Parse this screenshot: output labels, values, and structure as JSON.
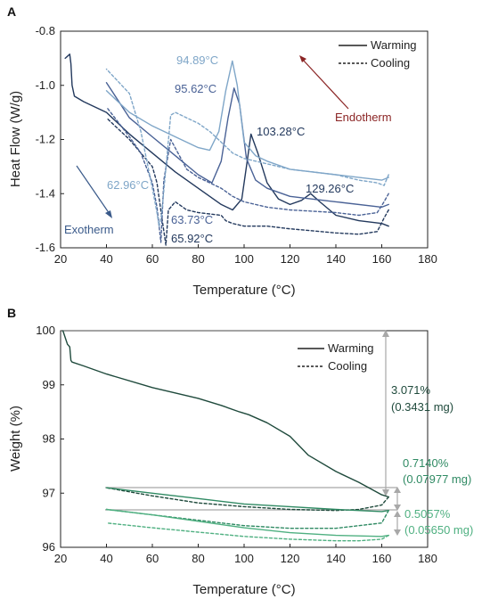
{
  "chart_data": [
    {
      "panel": "A",
      "type": "line",
      "xlabel": "Temperature (°C)",
      "ylabel": "Heat Flow (W/g)",
      "xlim": [
        20,
        180
      ],
      "ylim": [
        -1.6,
        -0.8
      ],
      "xticks": [
        20,
        40,
        60,
        80,
        100,
        120,
        140,
        160,
        180
      ],
      "yticks": [
        -0.8,
        -1.0,
        -1.2,
        -1.4,
        -1.6
      ],
      "ytick_labels": [
        "-0.8",
        "-1.0",
        "-1.2",
        "-1.4",
        "-1.6"
      ],
      "legend": {
        "position": "top-right",
        "entries": [
          "Warming",
          "Cooling"
        ]
      },
      "colors": {
        "dark": "#23395d",
        "mid": "#4a6296",
        "light": "#7fa6c8",
        "endotherm": "#8b2525",
        "exotherm": "#3a5a8a"
      },
      "series": [
        {
          "style": "solid",
          "color": "#23395d",
          "x": [
            22,
            24,
            24.5,
            25,
            26,
            30,
            40,
            50,
            60,
            70,
            80,
            90,
            95,
            99,
            101,
            103,
            106,
            110,
            115,
            120,
            125,
            129,
            133,
            140,
            150,
            160,
            163
          ],
          "y": [
            -0.9,
            -0.885,
            -0.92,
            -1.0,
            -1.04,
            -1.06,
            -1.1,
            -1.18,
            -1.25,
            -1.32,
            -1.38,
            -1.44,
            -1.46,
            -1.42,
            -1.3,
            -1.18,
            -1.25,
            -1.36,
            -1.42,
            -1.44,
            -1.425,
            -1.4,
            -1.43,
            -1.48,
            -1.5,
            -1.51,
            -1.52
          ]
        },
        {
          "style": "solid",
          "color": "#4a6296",
          "x": [
            40,
            50,
            60,
            70,
            80,
            86,
            90,
            93,
            95.62,
            98,
            101,
            105,
            110,
            120,
            140,
            160,
            163
          ],
          "y": [
            -0.99,
            -1.12,
            -1.19,
            -1.26,
            -1.33,
            -1.36,
            -1.28,
            -1.12,
            -1.01,
            -1.07,
            -1.27,
            -1.35,
            -1.38,
            -1.41,
            -1.43,
            -1.45,
            -1.44
          ]
        },
        {
          "style": "solid",
          "color": "#7fa6c8",
          "x": [
            40,
            50,
            60,
            70,
            80,
            85,
            89,
            92,
            94.89,
            97,
            100,
            105,
            110,
            120,
            140,
            160,
            163
          ],
          "y": [
            -1.02,
            -1.1,
            -1.15,
            -1.19,
            -1.23,
            -1.24,
            -1.17,
            -1.02,
            -0.91,
            -1.0,
            -1.21,
            -1.26,
            -1.28,
            -1.31,
            -1.33,
            -1.35,
            -1.34
          ]
        },
        {
          "style": "dashed",
          "color": "#23395d",
          "x": [
            163,
            161,
            158,
            150,
            140,
            120,
            110,
            100,
            95,
            92,
            90,
            80,
            75,
            70,
            67,
            65.92,
            64,
            62,
            60,
            55,
            50,
            40
          ],
          "y": [
            -1.46,
            -1.49,
            -1.54,
            -1.55,
            -1.545,
            -1.53,
            -1.52,
            -1.52,
            -1.51,
            -1.5,
            -1.48,
            -1.47,
            -1.46,
            -1.43,
            -1.46,
            -1.59,
            -1.48,
            -1.36,
            -1.3,
            -1.25,
            -1.2,
            -1.12
          ]
        },
        {
          "style": "dashed",
          "color": "#4a6296",
          "x": [
            163,
            161,
            158,
            150,
            140,
            120,
            110,
            100,
            95,
            90,
            85,
            80,
            75,
            68,
            65,
            63.73,
            62,
            60,
            55,
            50,
            40
          ],
          "y": [
            -1.4,
            -1.43,
            -1.47,
            -1.48,
            -1.47,
            -1.46,
            -1.45,
            -1.43,
            -1.41,
            -1.38,
            -1.36,
            -1.34,
            -1.31,
            -1.2,
            -1.35,
            -1.58,
            -1.45,
            -1.36,
            -1.25,
            -1.19,
            -1.08
          ]
        },
        {
          "style": "dashed",
          "color": "#7fa6c8",
          "x": [
            163,
            161,
            158,
            150,
            140,
            120,
            110,
            100,
            95,
            90,
            85,
            80,
            75,
            70,
            68,
            66,
            64,
            62.96,
            62,
            60,
            55,
            50,
            40
          ],
          "y": [
            -1.33,
            -1.37,
            -1.36,
            -1.35,
            -1.33,
            -1.31,
            -1.29,
            -1.27,
            -1.25,
            -1.21,
            -1.17,
            -1.14,
            -1.12,
            -1.1,
            -1.11,
            -1.3,
            -1.48,
            -1.52,
            -1.47,
            -1.38,
            -1.17,
            -1.03,
            -0.94
          ]
        }
      ],
      "annotations": [
        {
          "text": "94.89°C",
          "color": "#7fa6c8"
        },
        {
          "text": "95.62°C",
          "color": "#4a6296"
        },
        {
          "text": "103.28°C",
          "color": "#23395d"
        },
        {
          "text": "129.26°C",
          "color": "#23395d"
        },
        {
          "text": "62.96°C",
          "color": "#7fa6c8"
        },
        {
          "text": "63.73°C",
          "color": "#4a6296"
        },
        {
          "text": "65.92°C",
          "color": "#23395d"
        },
        {
          "text": "Endotherm",
          "color": "#8b2525"
        },
        {
          "text": "Exotherm",
          "color": "#3a5a8a"
        }
      ]
    },
    {
      "panel": "B",
      "type": "line",
      "xlabel": "Temperature (°C)",
      "ylabel": "Weight (%)",
      "xlim": [
        20,
        180
      ],
      "ylim": [
        96,
        100
      ],
      "xticks": [
        20,
        40,
        60,
        80,
        100,
        120,
        140,
        160,
        180
      ],
      "yticks": [
        100,
        99,
        98,
        97,
        96
      ],
      "legend": {
        "position": "top-right",
        "entries": [
          "Warming",
          "Cooling"
        ]
      },
      "colors": {
        "dark": "#1f4a3c",
        "mid": "#2f8a63",
        "light": "#4fb081",
        "guide": "#a8a8a8"
      },
      "series": [
        {
          "style": "solid",
          "color": "#1f4a3c",
          "x": [
            21,
            23,
            24,
            24.5,
            25,
            30,
            40,
            60,
            80,
            90,
            98,
            102,
            110,
            120,
            128,
            140,
            150,
            160,
            163
          ],
          "y": [
            100,
            99.75,
            99.7,
            99.45,
            99.42,
            99.35,
            99.2,
            98.95,
            98.75,
            98.62,
            98.5,
            98.45,
            98.3,
            98.05,
            97.7,
            97.4,
            97.2,
            96.97,
            96.93
          ]
        },
        {
          "style": "dashed",
          "color": "#1f4a3c",
          "x": [
            163,
            160,
            150,
            140,
            120,
            100,
            80,
            60,
            40
          ],
          "y": [
            96.93,
            96.78,
            96.7,
            96.68,
            96.7,
            96.75,
            96.82,
            96.95,
            97.1
          ]
        },
        {
          "style": "solid",
          "color": "#2f8a63",
          "x": [
            40,
            60,
            80,
            100,
            120,
            140,
            160,
            163
          ],
          "y": [
            97.1,
            97.0,
            96.9,
            96.8,
            96.75,
            96.7,
            96.66,
            96.68
          ]
        },
        {
          "style": "dashed",
          "color": "#2f8a63",
          "x": [
            163,
            160,
            140,
            120,
            100,
            80,
            60,
            40
          ],
          "y": [
            96.68,
            96.45,
            96.35,
            96.35,
            96.4,
            96.5,
            96.6,
            96.7
          ]
        },
        {
          "style": "solid",
          "color": "#4fb081",
          "x": [
            40,
            60,
            80,
            100,
            120,
            140,
            160,
            163
          ],
          "y": [
            96.7,
            96.6,
            96.48,
            96.36,
            96.27,
            96.22,
            96.2,
            96.22
          ]
        },
        {
          "style": "dashed",
          "color": "#4fb081",
          "x": [
            163,
            160,
            150,
            140,
            120,
            100,
            80,
            60,
            40
          ],
          "y": [
            96.22,
            96.15,
            96.12,
            96.12,
            96.15,
            96.2,
            96.28,
            96.36,
            96.45
          ]
        }
      ],
      "annotations": [
        {
          "text": "3.071%",
          "color": "#1f4a3c"
        },
        {
          "text": "(0.3431 mg)",
          "color": "#1f4a3c"
        },
        {
          "text": "0.7140%",
          "color": "#2f8a63"
        },
        {
          "text": "(0.07977 mg)",
          "color": "#2f8a63"
        },
        {
          "text": "0.5057%",
          "color": "#4fb081"
        },
        {
          "text": "(0.05650 mg)",
          "color": "#4fb081"
        }
      ]
    }
  ]
}
